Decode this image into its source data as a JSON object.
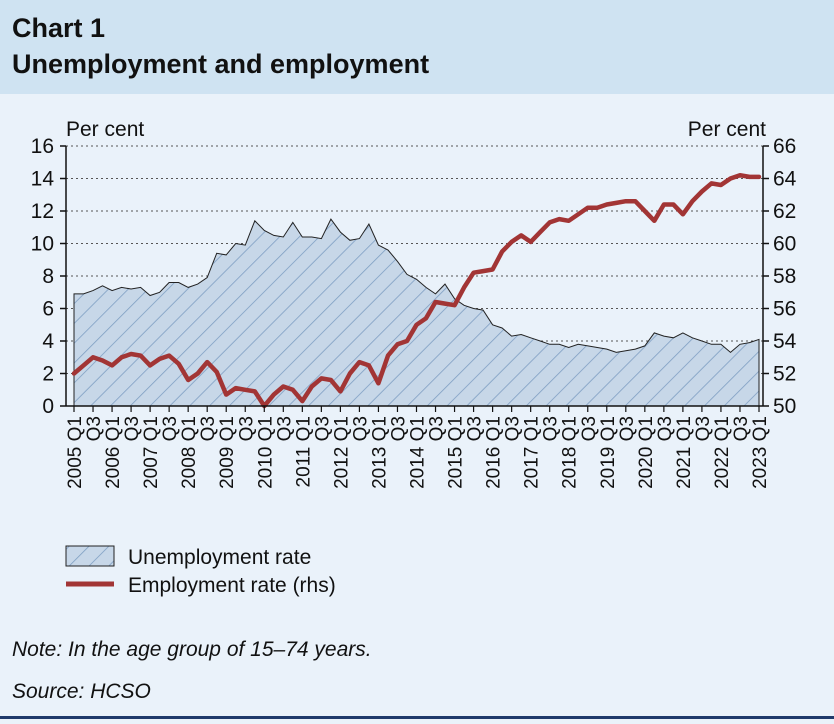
{
  "header": {
    "number": "Chart 1",
    "title": "Unemployment and employment"
  },
  "chart_data": {
    "type": "area+line",
    "title": "Unemployment and employment",
    "left_axis": {
      "unit_label": "Per cent",
      "ylim": [
        0,
        16
      ],
      "ticks": [
        0,
        2,
        4,
        6,
        8,
        10,
        12,
        14,
        16
      ]
    },
    "right_axis": {
      "unit_label": "Per cent",
      "ylim": [
        50,
        66
      ],
      "ticks": [
        50,
        52,
        54,
        56,
        58,
        60,
        62,
        64,
        66
      ]
    },
    "x_tick_labels": [
      "2005 Q1",
      "Q3",
      "2006 Q1",
      "Q3",
      "2007 Q1",
      "Q3",
      "2008 Q1",
      "Q3",
      "2009 Q1",
      "Q3",
      "2010 Q1",
      "Q3",
      "2011 Q1",
      "Q3",
      "2012 Q1",
      "Q3",
      "2013 Q1",
      "Q3",
      "2014 Q1",
      "Q3",
      "2015 Q1",
      "Q3",
      "2016 Q1",
      "Q3",
      "2017 Q1",
      "Q3",
      "2018 Q1",
      "Q3",
      "2019 Q1",
      "Q3",
      "2020 Q1",
      "Q3",
      "2021 Q1",
      "Q3",
      "2022 Q1",
      "Q3",
      "2023 Q1"
    ],
    "grid": "horizontal dotted",
    "legend_placement": "bottom-left",
    "series": [
      {
        "name": "Unemployment rate",
        "type": "area",
        "axis": "left",
        "color": "#c5d6e8",
        "hatch": "#7b9cc0",
        "values": [
          6.9,
          6.9,
          7.1,
          7.4,
          7.1,
          7.3,
          7.2,
          7.3,
          6.8,
          7.0,
          7.6,
          7.6,
          7.3,
          7.5,
          7.9,
          9.4,
          9.3,
          10.0,
          9.9,
          11.4,
          10.8,
          10.5,
          10.4,
          11.3,
          10.4,
          10.4,
          10.3,
          11.5,
          10.7,
          10.2,
          10.3,
          11.2,
          9.9,
          9.6,
          8.9,
          8.1,
          7.8,
          7.3,
          6.9,
          7.5,
          6.6,
          6.2,
          6.0,
          5.9,
          5.0,
          4.8,
          4.3,
          4.4,
          4.2,
          4.0,
          3.8,
          3.8,
          3.6,
          3.8,
          3.7,
          3.6,
          3.5,
          3.3,
          3.4,
          3.5,
          3.7,
          4.5,
          4.3,
          4.2,
          4.5,
          4.2,
          4.0,
          3.8,
          3.8,
          3.3,
          3.8,
          3.9,
          4.1
        ]
      },
      {
        "name": "Employment rate (rhs)",
        "type": "line",
        "axis": "right",
        "color": "#a23535",
        "values": [
          52.0,
          52.5,
          53.0,
          52.8,
          52.5,
          53.0,
          53.2,
          53.1,
          52.5,
          52.9,
          53.1,
          52.6,
          51.6,
          52.0,
          52.7,
          52.1,
          50.7,
          51.1,
          51.0,
          50.9,
          50.0,
          50.7,
          51.2,
          51.0,
          50.3,
          51.2,
          51.7,
          51.6,
          50.9,
          52.0,
          52.7,
          52.5,
          51.4,
          53.1,
          53.8,
          54.0,
          55.0,
          55.4,
          56.4,
          56.3,
          56.2,
          57.3,
          58.2,
          58.3,
          58.4,
          59.5,
          60.1,
          60.5,
          60.1,
          60.7,
          61.3,
          61.5,
          61.4,
          61.8,
          62.2,
          62.2,
          62.4,
          62.5,
          62.6,
          62.6,
          62.0,
          61.4,
          62.4,
          62.4,
          61.8,
          62.6,
          63.2,
          63.7,
          63.6,
          64.0,
          64.2,
          64.1,
          64.1
        ]
      }
    ]
  },
  "footer": {
    "note": "Note: In the age group of 15–74 years.",
    "source": "Source: HCSO"
  }
}
